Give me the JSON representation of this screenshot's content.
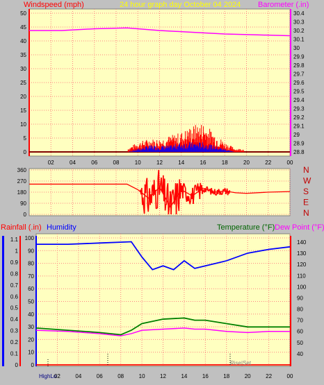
{
  "header": {
    "left_title": "Windspeed (mph)",
    "center_title": "24 hour graph day   October 04 2024",
    "right_title": "Barometer (.in)"
  },
  "x_ticks": [
    "02",
    "04",
    "06",
    "08",
    "10",
    "12",
    "14",
    "16",
    "18",
    "20",
    "22",
    "00"
  ],
  "wind_chart": {
    "y_ticks": [
      "0",
      "5",
      "10",
      "15",
      "20",
      "25",
      "30",
      "35",
      "40",
      "45",
      "50"
    ],
    "baro_ticks": [
      "28.8",
      "28.9",
      "29",
      "29.1",
      "29.2",
      "29.3",
      "29.4",
      "29.5",
      "29.6",
      "29.7",
      "29.8",
      "29.9",
      "30",
      "30.1",
      "30.2",
      "30.3",
      "30.4"
    ]
  },
  "dir_chart": {
    "y_ticks": [
      "0",
      "90",
      "180",
      "270",
      "360"
    ],
    "compass": [
      "N",
      "W",
      "S",
      "E",
      "N"
    ]
  },
  "bottom_chart": {
    "rain_title": "Rainfall (.in)",
    "hum_title": "Humidity",
    "temp_title": "Temperature (°F)",
    "dew_title": "Dew Point (°F)",
    "rain_ticks": [
      "0",
      "0.1",
      "0.2",
      "0.3",
      "0.4",
      "0.5",
      "0.6",
      "0.7",
      "0.8",
      "0.9",
      "1",
      "1.1"
    ],
    "hum_ticks": [
      "0",
      "10",
      "20",
      "30",
      "40",
      "50",
      "60",
      "70",
      "80",
      "90",
      "100"
    ],
    "temp_ticks": [
      "40",
      "50",
      "60",
      "70",
      "80",
      "90",
      "100",
      "110",
      "120",
      "130",
      "140"
    ],
    "hi_label": "HighLo",
    "sun_label": "Rise|Set"
  },
  "colors": {
    "wind": "#ff0000",
    "gust": "#ff0000",
    "avg": "#0000ff",
    "baro": "#ff00ff",
    "direction": "#ff0000",
    "humidity": "#0000ff",
    "temperature": "#008000",
    "dewpoint": "#ff00ff",
    "rain": "#ff0000",
    "plot_bg": "#ffffc0",
    "title_yellow": "#ffff00"
  },
  "chart_data": [
    {
      "type": "line",
      "title": "24 hour graph day   October 04 2024",
      "ylabel": "Windspeed (mph)",
      "y2label": "Barometer (.in)",
      "ylim": [
        0,
        50
      ],
      "y2lim": [
        28.8,
        30.4
      ],
      "x_hours": [
        9,
        10,
        11,
        12,
        13,
        14,
        15,
        16,
        17,
        18,
        19
      ],
      "series": [
        {
          "name": "gust",
          "values": [
            1,
            3,
            4,
            4,
            5,
            6,
            8,
            9,
            6,
            3,
            1
          ]
        },
        {
          "name": "average",
          "values": [
            0,
            1,
            2,
            2,
            2,
            3,
            3,
            3,
            2,
            1,
            0
          ]
        }
      ],
      "barometer": {
        "x": [
          0,
          3,
          6,
          9,
          12,
          15,
          18,
          21,
          24
        ],
        "values": [
          30.2,
          30.2,
          30.22,
          30.23,
          30.2,
          30.18,
          30.16,
          30.15,
          30.14
        ]
      }
    },
    {
      "type": "line",
      "ylabel": "direction",
      "ylim": [
        0,
        360
      ],
      "x": [
        0,
        3,
        6,
        9,
        10,
        11,
        12,
        13,
        14,
        15,
        16,
        17,
        18,
        19,
        20,
        22,
        24
      ],
      "values": [
        245,
        245,
        245,
        245,
        200,
        130,
        220,
        60,
        200,
        150,
        210,
        180,
        190,
        175,
        170,
        180,
        185
      ]
    },
    {
      "type": "line",
      "ylim_humidity": [
        0,
        100
      ],
      "ylim_temperature": [
        30,
        145
      ],
      "ylim_rain": [
        0,
        1.1
      ],
      "humidity": {
        "x": [
          0,
          3,
          6,
          9,
          10,
          11,
          12,
          13,
          14,
          15,
          16,
          17,
          18,
          20,
          22,
          24
        ],
        "values": [
          95,
          95,
          96,
          97,
          85,
          75,
          78,
          75,
          82,
          76,
          78,
          80,
          82,
          88,
          91,
          93
        ]
      },
      "temperature": {
        "x": [
          0,
          3,
          6,
          8,
          9,
          10,
          12,
          14,
          15,
          16,
          18,
          20,
          22,
          24
        ],
        "values": [
          63,
          61,
          59,
          57,
          61,
          67,
          71,
          72,
          70,
          70,
          67,
          64,
          64,
          64
        ]
      },
      "dewpoint": {
        "x": [
          0,
          3,
          6,
          8,
          9,
          10,
          12,
          14,
          15,
          16,
          18,
          20,
          22,
          24
        ],
        "values": [
          61,
          60,
          58,
          56,
          58,
          61,
          62,
          63,
          62,
          62,
          60,
          59,
          60,
          60
        ]
      },
      "rain": {
        "x": [
          0,
          24
        ],
        "values": [
          0,
          0
        ]
      }
    }
  ]
}
